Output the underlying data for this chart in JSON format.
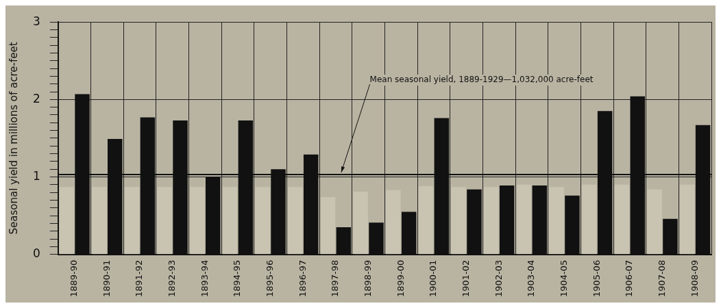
{
  "chart_data": {
    "type": "bar",
    "ylabel": "Seasonal yield in millions of acre-feet",
    "categories": [
      "1889-90",
      "1890-91",
      "1891-92",
      "1892-93",
      "1893-94",
      "1894-95",
      "1895-96",
      "1896-97",
      "1897-98",
      "1898-99",
      "1899-00",
      "1900-01",
      "1901-02",
      "1902-03",
      "1903-04",
      "1904-05",
      "1905-06",
      "1906-07",
      "1907-08",
      "1908-09"
    ],
    "series": [
      {
        "color": "#c9c4b2",
        "values": [
          0.87,
          0.87,
          0.87,
          0.87,
          0.87,
          0.87,
          0.87,
          0.87,
          0.74,
          0.81,
          0.83,
          0.88,
          0.87,
          0.87,
          0.9,
          0.87,
          0.9,
          0.9,
          0.84,
          0.9
        ]
      },
      {
        "color": "#111111",
        "values": [
          2.07,
          1.49,
          1.77,
          1.73,
          1.0,
          1.73,
          1.1,
          1.29,
          0.35,
          0.41,
          0.55,
          1.76,
          0.84,
          0.89,
          0.89,
          0.76,
          1.85,
          2.04,
          0.46,
          1.67
        ]
      }
    ],
    "ylim": [
      0,
      3
    ],
    "yticks": [
      0,
      {
        "value": 0.1,
        "label": null
      },
      {
        "value": 0.2,
        "label": null
      },
      {
        "value": 0.3,
        "label": null
      },
      {
        "value": 0.4,
        "label": null
      },
      {
        "value": 0.5,
        "label": null
      },
      {
        "value": 0.6,
        "label": null
      },
      {
        "value": 0.7,
        "label": null
      },
      {
        "value": 0.8,
        "label": null
      },
      {
        "value": 0.9,
        "label": null
      },
      1,
      {
        "value": 1.1,
        "label": null
      },
      {
        "value": 1.2,
        "label": null
      },
      {
        "value": 1.3,
        "label": null
      },
      {
        "value": 1.4,
        "label": null
      },
      {
        "value": 1.5,
        "label": null
      },
      {
        "value": 1.6,
        "label": null
      },
      {
        "value": 1.7,
        "label": null
      },
      {
        "value": 1.8,
        "label": null
      },
      {
        "value": 1.9,
        "label": null
      },
      2,
      {
        "value": 2.1,
        "label": null
      },
      {
        "value": 2.2,
        "label": null
      },
      {
        "value": 2.3,
        "label": null
      },
      {
        "value": 2.4,
        "label": null
      },
      {
        "value": 2.5,
        "label": null
      },
      {
        "value": 2.6,
        "label": null
      },
      {
        "value": 2.7,
        "label": null
      },
      {
        "value": 2.8,
        "label": null
      },
      {
        "value": 2.9,
        "label": null
      },
      3
    ],
    "ref_lines": [
      {
        "axis": "y",
        "value": 1.032,
        "label": "Mean seasonal yield, 1889-1929—1,032,000 acre-feet",
        "color": "#111111"
      }
    ],
    "grid": true,
    "legend": false
  }
}
